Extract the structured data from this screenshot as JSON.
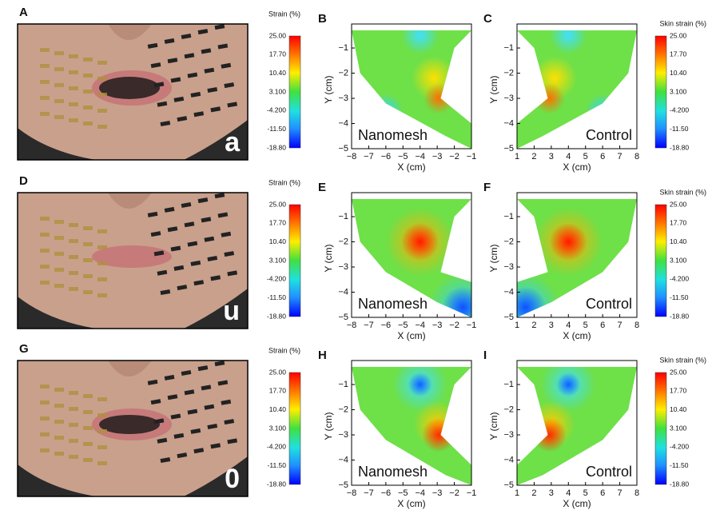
{
  "rows": [
    {
      "photo": {
        "panel": "A",
        "sound": "a"
      },
      "left_colorbar": {
        "title": "Strain (%)",
        "labels": [
          "25.00",
          "17.70",
          "10.40",
          "3.100",
          "-4.200",
          "-11.50",
          "-18.80"
        ]
      },
      "left_map": {
        "panel": "B",
        "label": "Nanomesh",
        "xlabel": "X (cm)",
        "ylabel": "Y (cm)",
        "xticks": [
          "−8",
          "−7",
          "−6",
          "−5",
          "−4",
          "−3",
          "−2",
          "−1"
        ],
        "yticks": [
          "−1",
          "−2",
          "−3",
          "−4",
          "−5"
        ]
      },
      "right_map": {
        "panel": "C",
        "label": "Control",
        "xlabel": "X (cm)",
        "ylabel": "Y (cm)",
        "xticks": [
          "1",
          "2",
          "3",
          "4",
          "5",
          "6",
          "7",
          "8"
        ],
        "yticks": [
          "−1",
          "−2",
          "−3",
          "−4",
          "−5"
        ]
      },
      "right_colorbar": {
        "title": "Skin strain (%)",
        "labels": [
          "25.00",
          "17.70",
          "10.40",
          "3.100",
          "-4.200",
          "-11.50",
          "-18.80"
        ]
      }
    },
    {
      "photo": {
        "panel": "D",
        "sound": "u"
      },
      "left_colorbar": {
        "title": "Strain (%)",
        "labels": [
          "25.00",
          "17.70",
          "10.40",
          "3.100",
          "-4.200",
          "-11.50",
          "-18.80"
        ]
      },
      "left_map": {
        "panel": "E",
        "label": "Nanomesh",
        "xlabel": "X (cm)",
        "ylabel": "Y (cm)",
        "xticks": [
          "−8",
          "−7",
          "−6",
          "−5",
          "−4",
          "−3",
          "−2",
          "−1"
        ],
        "yticks": [
          "−1",
          "−2",
          "−3",
          "−4",
          "−5"
        ]
      },
      "right_map": {
        "panel": "F",
        "label": "Control",
        "xlabel": "X (cm)",
        "ylabel": "Y (cm)",
        "xticks": [
          "1",
          "2",
          "3",
          "4",
          "5",
          "6",
          "7",
          "8"
        ],
        "yticks": [
          "−1",
          "−2",
          "−3",
          "−4",
          "−5"
        ]
      },
      "right_colorbar": {
        "title": "Skin strain (%)",
        "labels": [
          "25.00",
          "17.70",
          "10.40",
          "3.100",
          "-4.200",
          "-11.50",
          "-18.80"
        ]
      }
    },
    {
      "photo": {
        "panel": "G",
        "sound": "0"
      },
      "left_colorbar": {
        "title": "Strain (%)",
        "labels": [
          "25.00",
          "17.70",
          "10.40",
          "3.100",
          "-4.200",
          "-11.50",
          "-18.80"
        ]
      },
      "left_map": {
        "panel": "H",
        "label": "Nanomesh",
        "xlabel": "X (cm)",
        "ylabel": "Y (cm)",
        "xticks": [
          "−8",
          "−7",
          "−6",
          "−5",
          "−4",
          "−3",
          "−2",
          "−1"
        ],
        "yticks": [
          "−1",
          "−2",
          "−3",
          "−4",
          "−5"
        ]
      },
      "right_map": {
        "panel": "I",
        "label": "Control",
        "xlabel": "X (cm)",
        "ylabel": "Y (cm)",
        "xticks": [
          "1",
          "2",
          "3",
          "4",
          "5",
          "6",
          "7",
          "8"
        ],
        "yticks": [
          "−1",
          "−2",
          "−3",
          "−4",
          "−5"
        ]
      },
      "right_colorbar": {
        "title": "Skin strain (%)",
        "labels": [
          "25.00",
          "17.70",
          "10.40",
          "3.100",
          "-4.200",
          "-11.50",
          "-18.80"
        ]
      }
    }
  ]
}
